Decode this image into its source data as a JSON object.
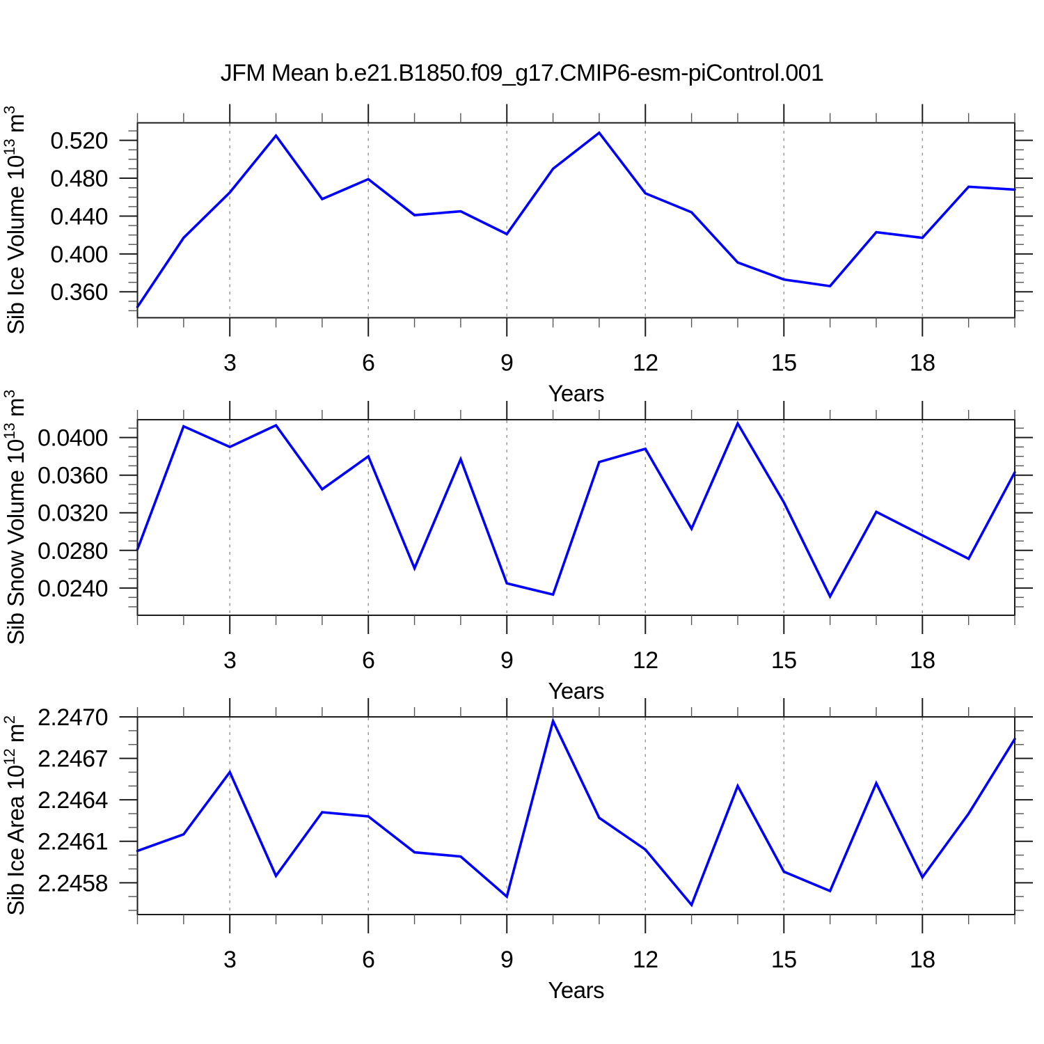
{
  "title": "JFM Mean b.e21.B1850.f09_g17.CMIP6-esm-piControl.001",
  "style": {
    "line_color": "#0000FF",
    "grid_color": "#9A9A9A",
    "axis_color": "#1C1C1C",
    "minor_tick_color": "#555555",
    "background": "#FFFFFF"
  },
  "chart_data": [
    {
      "type": "line",
      "id": "sib-ice-volume",
      "ylabel": "Sib Ice Volume 10^13 m^3",
      "ylabel_parts": [
        {
          "t": "Sib Ice Volume 10"
        },
        {
          "t": "13",
          "sup": true
        },
        {
          "t": " m"
        },
        {
          "t": "3",
          "sup": true
        }
      ],
      "xlabel": "Years",
      "x": [
        1,
        2,
        3,
        4,
        5,
        6,
        7,
        8,
        9,
        10,
        11,
        12,
        13,
        14,
        15,
        16,
        17,
        18,
        19,
        20
      ],
      "values": [
        0.344,
        0.417,
        0.465,
        0.525,
        0.458,
        0.479,
        0.441,
        0.445,
        0.421,
        0.49,
        0.528,
        0.464,
        0.444,
        0.391,
        0.373,
        0.366,
        0.423,
        0.417,
        0.471,
        0.468
      ],
      "xlim": [
        1,
        20
      ],
      "ylim": [
        0.3326,
        0.5385
      ],
      "xticks": [
        3,
        6,
        9,
        12,
        15,
        18
      ],
      "x_minor_step": 1,
      "yticks": [
        0.36,
        0.4,
        0.44,
        0.48,
        0.52
      ],
      "ytick_labels": [
        "0.360",
        "0.400",
        "0.440",
        "0.480",
        "0.520"
      ],
      "y_minor_step": 0.01,
      "grid": "vertical dashed at major x ticks",
      "legend": "none"
    },
    {
      "type": "line",
      "id": "sib-snow-volume",
      "ylabel": "Sib Snow Volume 10^13 m^3",
      "ylabel_parts": [
        {
          "t": "Sib Snow Volume 10"
        },
        {
          "t": "13",
          "sup": true
        },
        {
          "t": " m"
        },
        {
          "t": "3",
          "sup": true
        }
      ],
      "xlabel": "Years",
      "x": [
        1,
        2,
        3,
        4,
        5,
        6,
        7,
        8,
        9,
        10,
        11,
        12,
        13,
        14,
        15,
        16,
        17,
        18,
        19,
        20
      ],
      "values": [
        0.0281,
        0.0412,
        0.039,
        0.0413,
        0.0345,
        0.038,
        0.0261,
        0.0377,
        0.0245,
        0.0233,
        0.0374,
        0.0388,
        0.0303,
        0.0415,
        0.0331,
        0.0231,
        0.0321,
        0.0296,
        0.0271,
        0.0363
      ],
      "xlim": [
        1,
        20
      ],
      "ylim": [
        0.0211,
        0.0419
      ],
      "xticks": [
        3,
        6,
        9,
        12,
        15,
        18
      ],
      "x_minor_step": 1,
      "yticks": [
        0.024,
        0.028,
        0.032,
        0.036,
        0.04
      ],
      "ytick_labels": [
        "0.0240",
        "0.0280",
        "0.0320",
        "0.0360",
        "0.0400"
      ],
      "y_minor_step": 0.001,
      "grid": "vertical dashed at major x ticks",
      "legend": "none"
    },
    {
      "type": "line",
      "id": "sib-ice-area",
      "ylabel": "Sib Ice Area 10^12 m^2",
      "ylabel_parts": [
        {
          "t": "Sib Ice Area 10"
        },
        {
          "t": "12",
          "sup": true
        },
        {
          "t": " m"
        },
        {
          "t": "2",
          "sup": true
        }
      ],
      "xlabel": "Years",
      "x": [
        1,
        2,
        3,
        4,
        5,
        6,
        7,
        8,
        9,
        10,
        11,
        12,
        13,
        14,
        15,
        16,
        17,
        18,
        19,
        20
      ],
      "values": [
        2.24603,
        2.24615,
        2.2466,
        2.24585,
        2.24631,
        2.24628,
        2.24602,
        2.24599,
        2.2457,
        2.24697,
        2.24627,
        2.24604,
        2.24564,
        2.2465,
        2.24588,
        2.24574,
        2.24652,
        2.24584,
        2.2463,
        2.24684
      ],
      "xlim": [
        1,
        20
      ],
      "ylim": [
        2.24557,
        2.247
      ],
      "xticks": [
        3,
        6,
        9,
        12,
        15,
        18
      ],
      "x_minor_step": 1,
      "yticks": [
        2.2458,
        2.2461,
        2.2464,
        2.2467,
        2.247
      ],
      "ytick_labels": [
        "2.2458",
        "2.2461",
        "2.2464",
        "2.2467",
        "2.2470"
      ],
      "y_minor_step": 0.0001,
      "grid": "vertical dashed at major x ticks",
      "legend": "none"
    }
  ]
}
